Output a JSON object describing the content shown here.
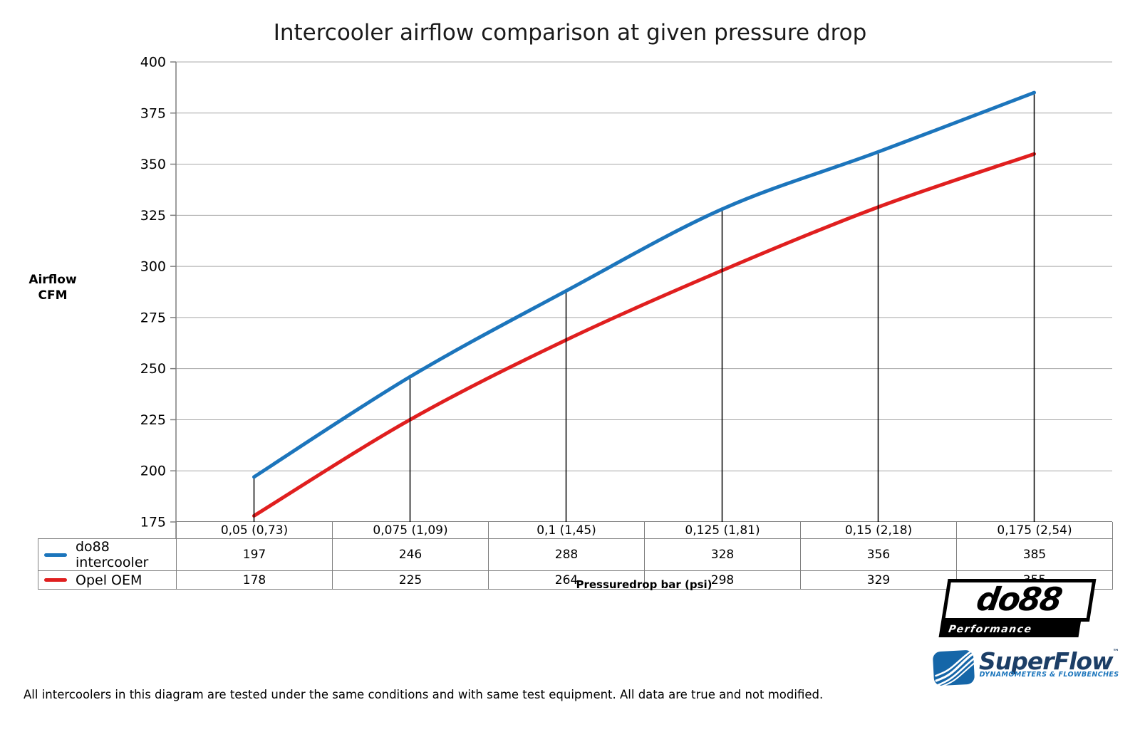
{
  "chart_data": {
    "type": "line",
    "title": "Intercooler airflow comparison at given pressure drop",
    "categories": [
      "0,05 (0,73)",
      "0,075 (1,09)",
      "0,1 (1,45)",
      "0,125 (1,81)",
      "0,15 (2,18)",
      "0,175 (2,54)"
    ],
    "series": [
      {
        "name": "do88 intercooler",
        "color": "#1C75BC",
        "values": [
          197,
          246,
          288,
          328,
          356,
          385
        ]
      },
      {
        "name": "Opel OEM",
        "color": "#E01F1F",
        "values": [
          178,
          225,
          264,
          298,
          329,
          355
        ]
      }
    ],
    "xlabel": "Pressuredrop bar (psi)",
    "ylabel_lines": [
      "Airflow",
      "CFM"
    ],
    "ylim": [
      175,
      400
    ],
    "ytick_step": 25,
    "grid": "horizontal",
    "legend_position": "table-left",
    "droplines_from_series": "do88 intercooler"
  },
  "logos": {
    "do88": {
      "text": "do88",
      "sub": "Performance"
    },
    "superflow": {
      "text": "SuperFlow",
      "tm": "™",
      "sub": "DYNAMOMETERS & FLOWBENCHES"
    }
  },
  "footer": {
    "disclaimer": "All intercoolers in this diagram are tested under the same conditions and with same test equipment. All data are true and not modified."
  },
  "colors": {
    "grid": "#A8A8A8",
    "axis": "#7F7F7F",
    "dropline": "#000000",
    "table_border": "#808080",
    "superflow_navy": "#1C3E66",
    "superflow_blue": "#1B75BC"
  }
}
